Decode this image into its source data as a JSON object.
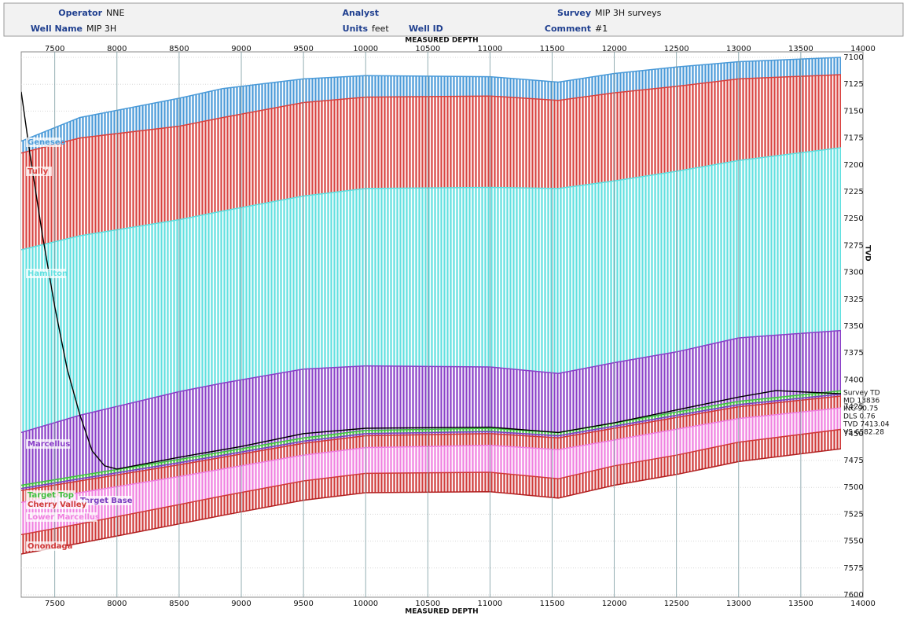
{
  "header": {
    "fields": [
      {
        "label": "Operator",
        "value": "NNE"
      },
      {
        "label": "Well Name",
        "value": "MIP 3H"
      },
      {
        "label": "Analyst"
      },
      {
        "label": "Units",
        "value": "feet"
      },
      {
        "label": "Well ID"
      },
      {
        "label": "Survey",
        "value": "MIP 3H surveys"
      },
      {
        "label": "Comment",
        "value": "#1"
      }
    ]
  },
  "chart_data": {
    "type": "formation-section",
    "x_label": "MEASURED DEPTH",
    "y_label": "TVD",
    "xlim": [
      7230,
      14000
    ],
    "ylim": [
      7100,
      7600
    ],
    "xticks": [
      7500,
      8000,
      8500,
      9000,
      9500,
      10000,
      10500,
      11000,
      11500,
      12000,
      12500,
      13000,
      13500,
      14000
    ],
    "yticks": [
      7100,
      7125,
      7150,
      7175,
      7200,
      7225,
      7250,
      7275,
      7300,
      7325,
      7350,
      7375,
      7400,
      7425,
      7450,
      7475,
      7500,
      7525,
      7550,
      7575,
      7600
    ],
    "grid": true,
    "md": [
      7230,
      7700,
      8500,
      8850,
      9500,
      10000,
      11000,
      11550,
      12000,
      12500,
      13000,
      13830
    ],
    "formations": [
      {
        "name": "Geneseo",
        "color": "#4a9ad8",
        "top": [
          7178,
          7156,
          7138,
          7129,
          7120,
          7117,
          7118,
          7123,
          7115,
          7109,
          7104,
          7100
        ]
      },
      {
        "name": "Tully",
        "color": "#d9423f",
        "top": [
          7189,
          7175,
          7164,
          7156,
          7142,
          7137,
          7136,
          7140,
          7133,
          7127,
          7120,
          7116
        ]
      },
      {
        "name": "Hamilton",
        "color": "#5fe0e0",
        "top": [
          7279,
          7266,
          7251,
          7243,
          7229,
          7222,
          7221,
          7222,
          7215,
          7206,
          7196,
          7184
        ]
      },
      {
        "name": "Marcellus",
        "color": "#8a3fc8",
        "top": [
          7449,
          7433,
          7411,
          7403,
          7390,
          7387,
          7388,
          7394,
          7384,
          7374,
          7361,
          7354
        ]
      },
      {
        "name": "Target Top",
        "color": "#3fbf3f",
        "top": [
          7498,
          7489,
          7474,
          7467,
          7454,
          7447,
          7445,
          7449,
          7440,
          7430,
          7420,
          7410
        ]
      },
      {
        "name": "Target Base",
        "color": "#7a3fc0",
        "top": [
          7501,
          7492,
          7477,
          7470,
          7457,
          7450,
          7448,
          7452,
          7443,
          7433,
          7423,
          7413
        ]
      },
      {
        "name": "Cherry Valley",
        "color": "#d03a3a",
        "top": [
          7503,
          7494,
          7479,
          7472,
          7459,
          7452,
          7450,
          7454,
          7445,
          7435,
          7425,
          7415
        ]
      },
      {
        "name": "Lower Marcellus",
        "color": "#f080e0",
        "top": [
          7514,
          7505,
          7490,
          7483,
          7470,
          7463,
          7461,
          7465,
          7456,
          7446,
          7436,
          7426
        ]
      },
      {
        "name": "Onondaga",
        "color": "#d03a3a",
        "top": [
          7544,
          7534,
          7516,
          7508,
          7494,
          7487,
          7486,
          7492,
          7480,
          7470,
          7458,
          7446
        ]
      }
    ],
    "base": [
      7562,
      7552,
      7534,
      7526,
      7512,
      7505,
      7504,
      7510,
      7498,
      7488,
      7476,
      7464
    ],
    "well_path": {
      "color": "#000000",
      "md": [
        7230,
        7300,
        7400,
        7500,
        7600,
        7700,
        7800,
        7900,
        8000,
        8500,
        9000,
        9500,
        10000,
        11000,
        11550,
        12000,
        12500,
        13000,
        13300,
        13836
      ],
      "tvd": [
        7132,
        7190,
        7265,
        7332,
        7390,
        7432,
        7466,
        7480,
        7483,
        7472,
        7462,
        7450,
        7445,
        7444,
        7449,
        7440,
        7428,
        7416,
        7410,
        7413
      ]
    },
    "annotation": [
      "Survey TD",
      "MD 13836",
      "INC 90.75",
      "DLS 0.76",
      "TVD 7413.04",
      "VS 6582.28"
    ]
  }
}
